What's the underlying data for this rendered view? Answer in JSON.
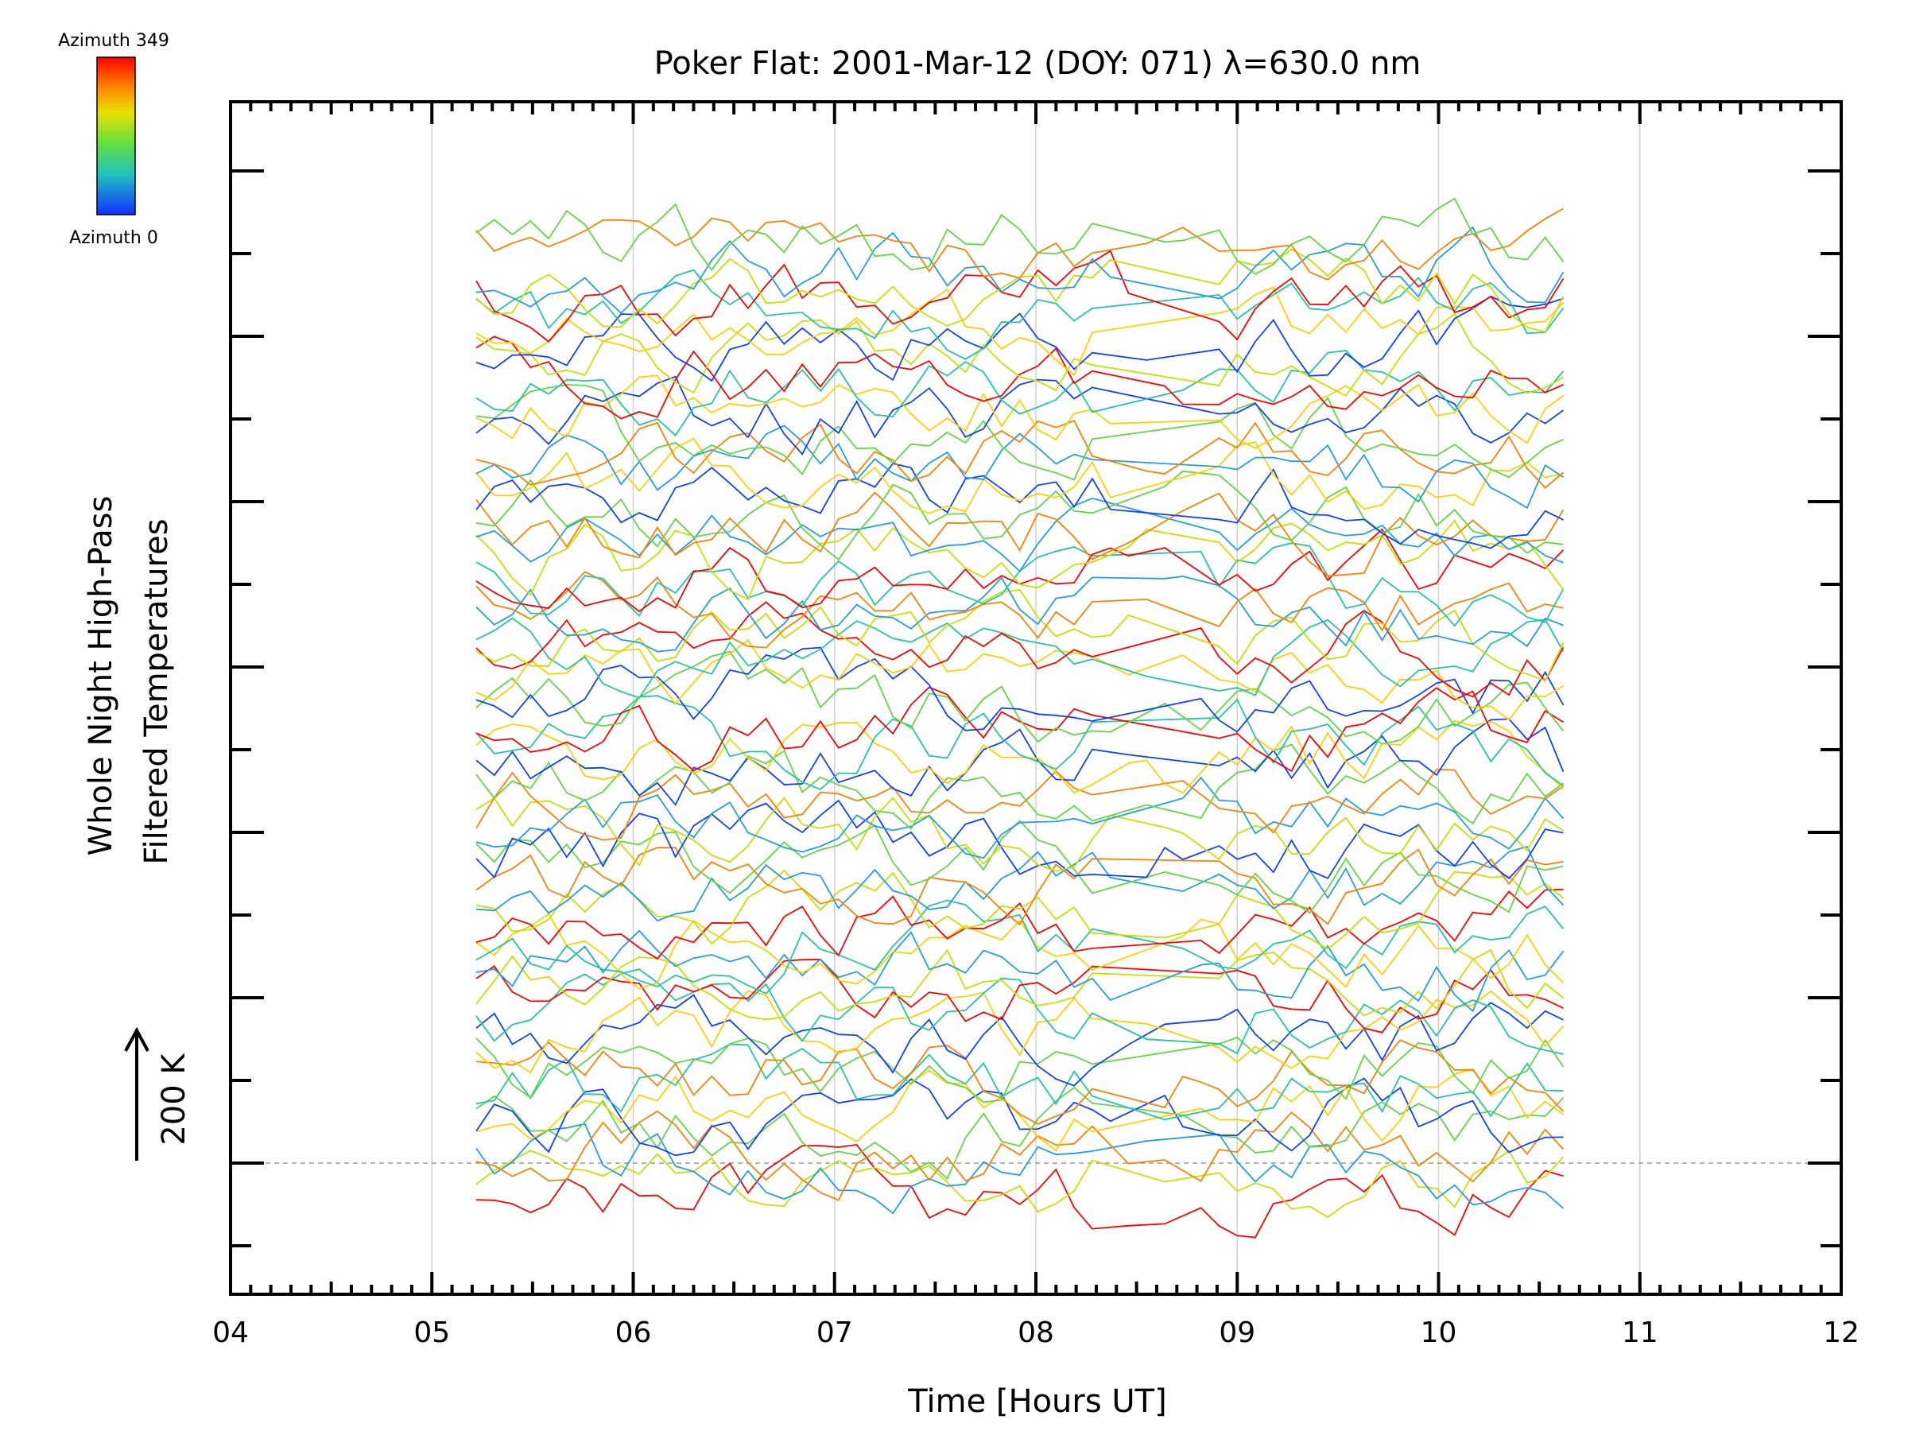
{
  "chart_data": {
    "type": "line",
    "title": "Poker Flat: 2001-Mar-12 (DOY: 071) λ=630.0 nm",
    "xlabel": "Time [Hours UT]",
    "ylabel_line1": "Whole Night High-Pass",
    "ylabel_line2": "Filtered Temperatures",
    "scale_label": "200 K",
    "xlim": [
      4,
      12
    ],
    "xticks": [
      "04",
      "05",
      "06",
      "07",
      "08",
      "09",
      "10",
      "11",
      "12"
    ],
    "grid": "vertical dotted at each hour",
    "baseline": "dashed line at lowest trace zero",
    "colorbar": {
      "top_label": "Azimuth  349",
      "bottom_label": "Azimuth  0",
      "colors": [
        "#ff0000",
        "#ff8000",
        "#ffd000",
        "#c8e000",
        "#60d840",
        "#20c8a0",
        "#20a0e0",
        "#1040ff"
      ]
    },
    "time_range": [
      5.22,
      10.62
    ],
    "n_traces": 64,
    "trace_spacing_K": 200,
    "description_note": "Stacked high-pass filtered temperature time series for each azimuth, offset vertically by 200 K per trace group; values are noisy fluctuations of roughly ±100 K around each offset."
  }
}
